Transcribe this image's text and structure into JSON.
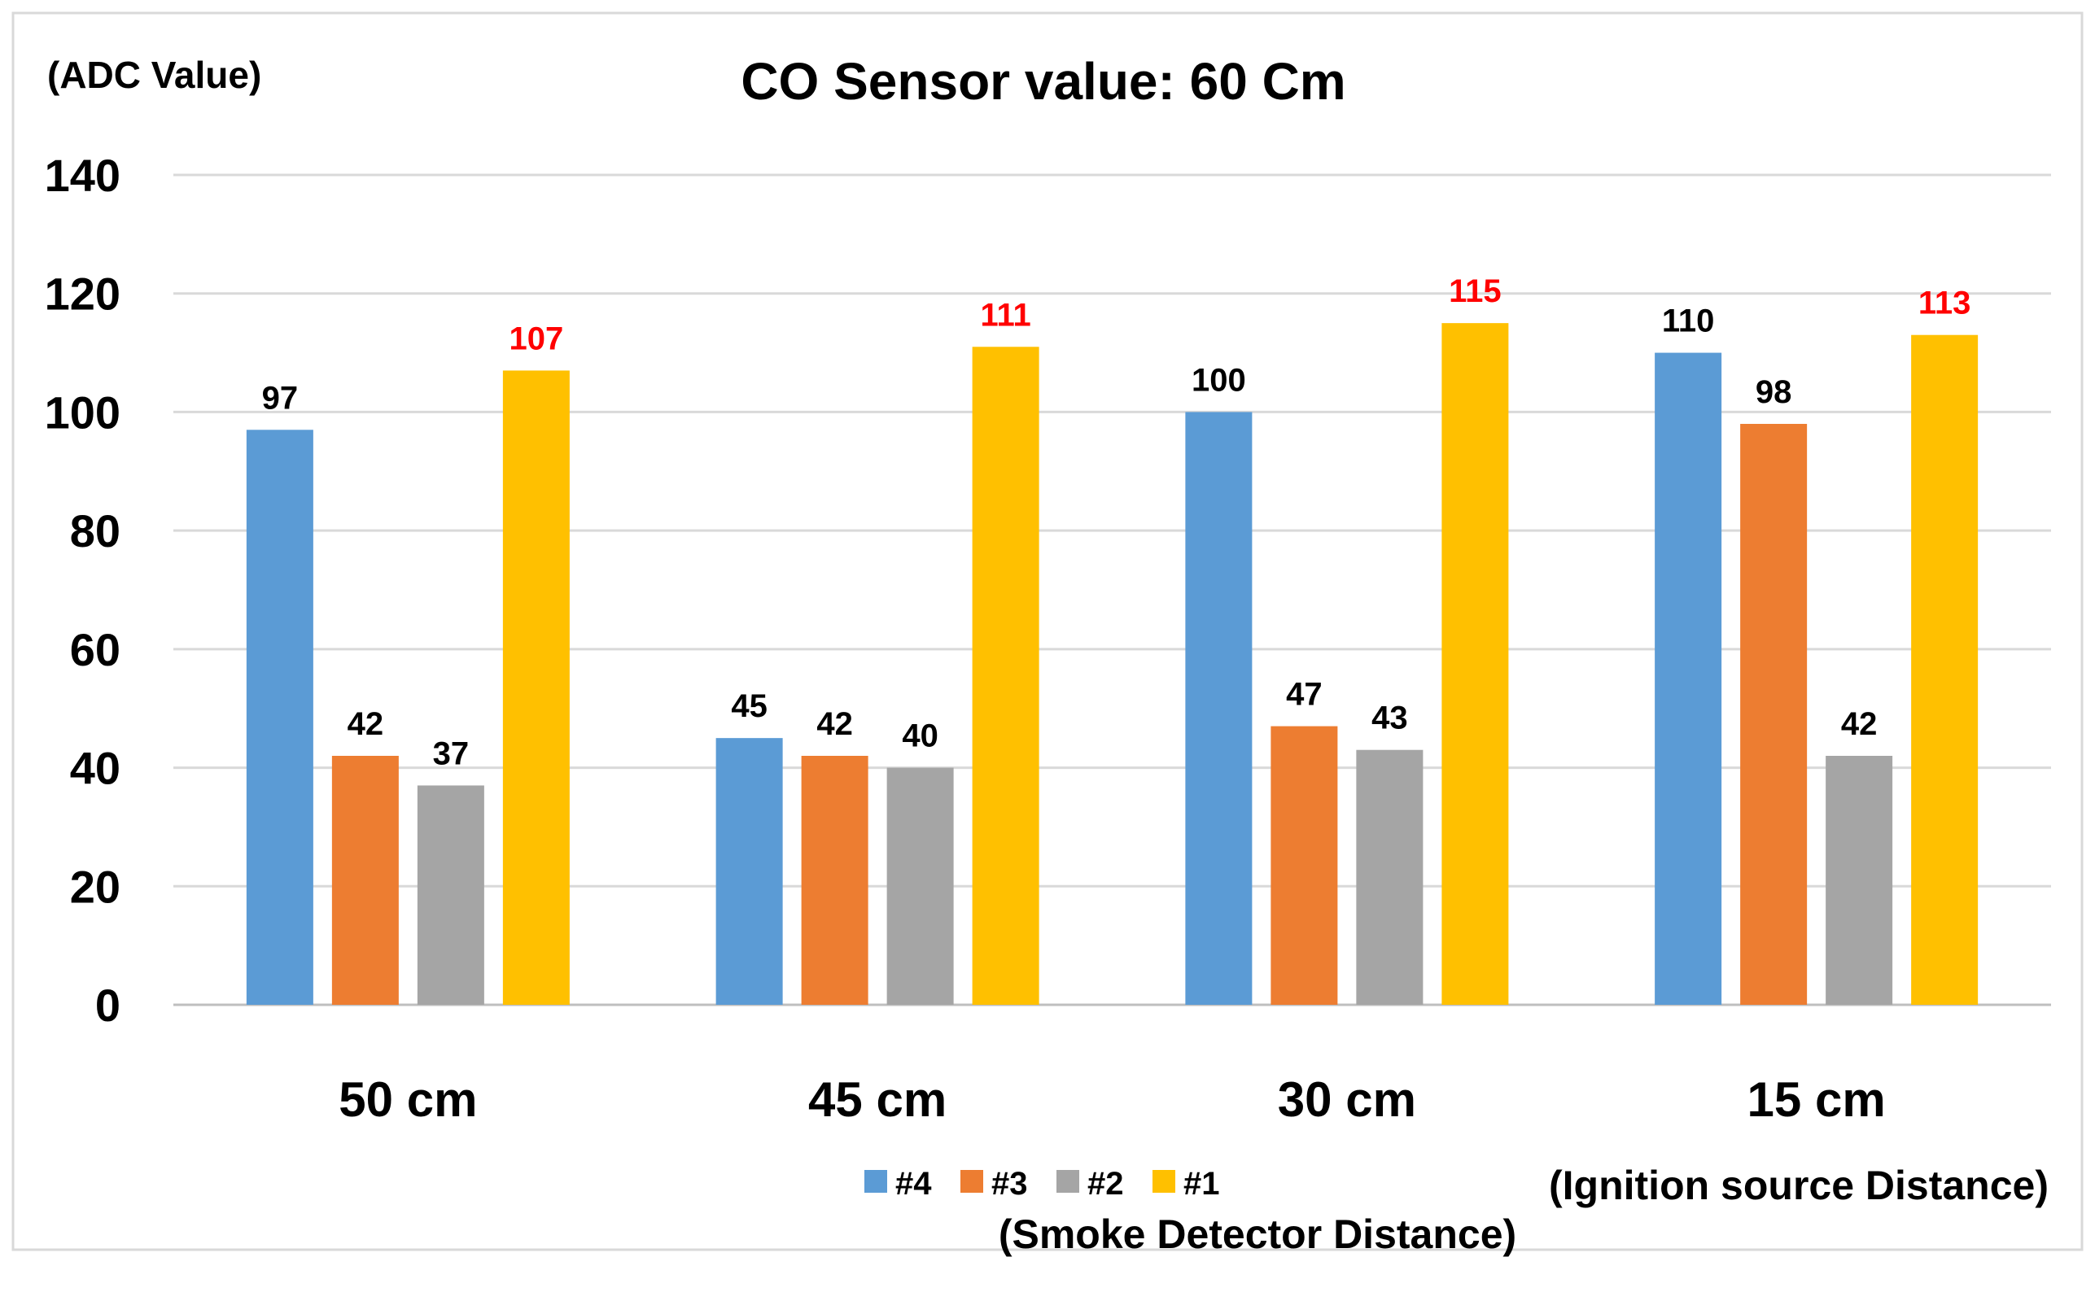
{
  "chart_data": {
    "type": "bar",
    "title": "CO Sensor value: 60 Cm",
    "ylabel": "(ADC Value)",
    "xlabel": "(Smoke Detector Distance)",
    "x_note": "(Ignition source Distance)",
    "categories": [
      "50 cm",
      "45 cm",
      "30 cm",
      "15 cm"
    ],
    "series": [
      {
        "name": "#4",
        "color": "#5B9BD5",
        "label_color": "#000000",
        "values": [
          97,
          45,
          100,
          110
        ]
      },
      {
        "name": "#3",
        "color": "#ED7D31",
        "label_color": "#000000",
        "values": [
          42,
          42,
          47,
          98
        ]
      },
      {
        "name": "#2",
        "color": "#A5A5A5",
        "label_color": "#000000",
        "values": [
          37,
          40,
          43,
          42
        ]
      },
      {
        "name": "#1",
        "color": "#FFC000",
        "label_color": "#FF0000",
        "values": [
          107,
          111,
          115,
          113
        ]
      }
    ],
    "ylim": [
      0,
      140
    ],
    "yticks": [
      0,
      20,
      40,
      60,
      80,
      100,
      120,
      140
    ],
    "grid": true,
    "legend": "bottom"
  }
}
